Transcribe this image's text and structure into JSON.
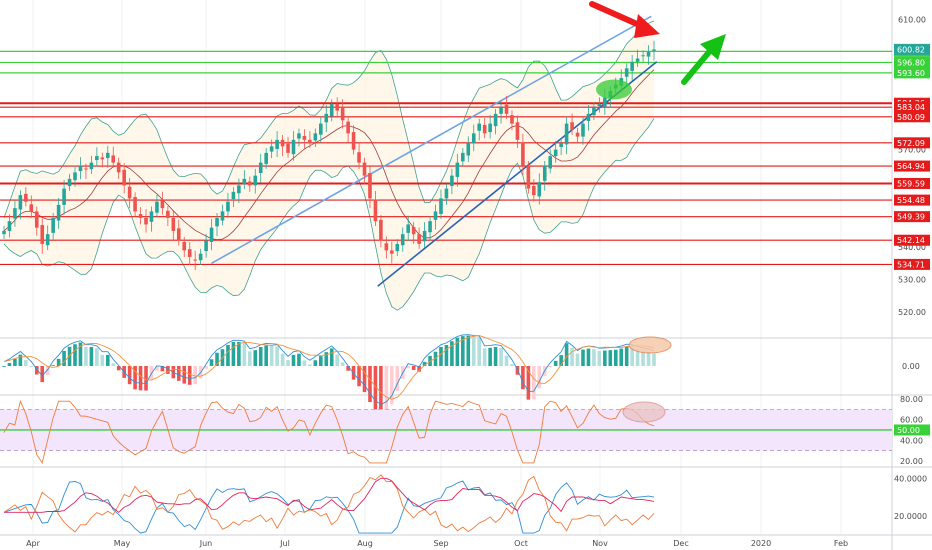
{
  "chart_data": [
    {
      "type": "candlestick",
      "panel": "price",
      "price_axis": {
        "ylim": [
          513,
          616
        ],
        "ticks": [
          {
            "value": 610,
            "label": "610.00"
          },
          {
            "value": 570,
            "label": "570.00"
          },
          {
            "value": 540,
            "label": "540.00"
          },
          {
            "value": 530,
            "label": "530.00"
          },
          {
            "value": 520,
            "label": "520.00"
          }
        ]
      },
      "current_price": {
        "value": 600.82,
        "label": "600.82",
        "color": "#26a69a"
      },
      "support_levels": [
        {
          "value": 600.2,
          "label": "600.20"
        },
        {
          "value": 596.8,
          "label": "596.80"
        },
        {
          "value": 593.6,
          "label": "593.60"
        }
      ],
      "resistance_levels": [
        {
          "value": 584.26,
          "label": "584.26"
        },
        {
          "value": 583.04,
          "label": "583.04"
        },
        {
          "value": 580.09,
          "label": "580.09"
        },
        {
          "value": 572.09,
          "label": "572.09"
        },
        {
          "value": 564.94,
          "label": "564.94"
        },
        {
          "value": 559.59,
          "label": "559.59"
        },
        {
          "value": 554.48,
          "label": "554.48"
        },
        {
          "value": 549.39,
          "label": "549.39"
        },
        {
          "value": 542.14,
          "label": "542.14"
        },
        {
          "value": 534.71,
          "label": "534.71"
        }
      ],
      "closes": [
        545,
        548,
        552,
        556,
        554,
        551,
        546,
        541,
        544,
        549,
        553,
        558,
        561,
        563,
        565,
        564,
        566,
        568,
        567,
        569,
        566,
        563,
        559,
        555,
        551,
        549,
        547,
        551,
        554,
        552,
        549,
        545,
        542,
        539,
        537,
        536,
        538,
        542,
        546,
        549,
        551,
        554,
        557,
        559,
        561,
        559,
        562,
        566,
        569,
        571,
        573,
        571,
        569,
        573,
        575,
        573,
        572,
        575,
        578,
        581,
        584,
        582,
        579,
        575,
        570,
        566,
        562,
        555,
        548,
        542,
        539,
        538,
        541,
        544,
        547,
        544,
        541,
        545,
        548,
        551,
        555,
        558,
        562,
        566,
        569,
        572,
        575,
        578,
        575,
        578,
        581,
        583,
        581,
        578,
        573,
        565,
        558,
        556,
        560,
        565,
        568,
        570,
        572,
        578,
        576,
        574,
        578,
        581,
        583,
        584,
        586,
        588,
        590,
        592,
        595,
        597,
        598,
        599,
        600,
        600.82
      ],
      "ma_trend_lines": [
        {
          "name": "upper",
          "from": {
            "date": "2019-06-03",
            "value": 535
          },
          "to": {
            "date": "2019-11-20",
            "value": 611
          }
        },
        {
          "name": "lower",
          "from": {
            "date": "2019-08-06",
            "value": 528
          },
          "to": {
            "date": "2019-11-22",
            "value": 597
          }
        }
      ],
      "arrows": [
        {
          "color": "#ee1c1c",
          "direction": "down-right"
        },
        {
          "color": "#15c115",
          "direction": "up-right"
        }
      ],
      "highlight_color": "#34c934"
    },
    {
      "type": "histogram",
      "panel": "macd",
      "ticks": [
        {
          "value": 0,
          "label": "0.00"
        }
      ],
      "ylim": [
        -10,
        10
      ]
    },
    {
      "type": "line",
      "panel": "rsi",
      "ticks": [
        {
          "value": 80,
          "label": "80.00"
        },
        {
          "value": 60,
          "label": "60.00"
        },
        {
          "value": 40,
          "label": "40.00"
        },
        {
          "value": 20,
          "label": "20.00"
        }
      ],
      "ylim": [
        14,
        84
      ],
      "overbought": 70,
      "oversold": 30,
      "midline": {
        "value": 50,
        "label": "50.00"
      }
    },
    {
      "type": "line",
      "panel": "dmi",
      "ticks": [
        {
          "value": 40,
          "label": "40.0000"
        },
        {
          "value": 20,
          "label": "20.0000"
        }
      ],
      "ylim": [
        10,
        46
      ]
    }
  ],
  "time_axis": {
    "labels": [
      "Apr",
      "May",
      "Jun",
      "Jul",
      "Aug",
      "Sep",
      "Oct",
      "Nov",
      "Dec",
      "2020",
      "Feb"
    ]
  },
  "colors": {
    "up": "#26a69a",
    "down": "#ef5350",
    "support": "#38d138",
    "resistance": "#e51b1b",
    "channel": "#5a9ae0",
    "bollinger": "#3da38f",
    "rsi": "#f07c3a",
    "macd": "#2f8fd8",
    "signal": "#f4923a"
  }
}
